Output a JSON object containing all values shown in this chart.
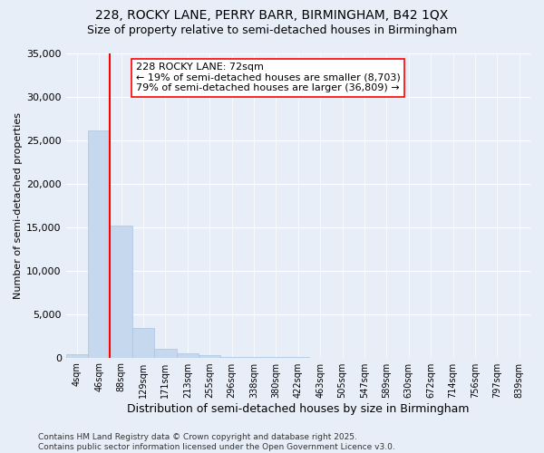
{
  "title_line1": "228, ROCKY LANE, PERRY BARR, BIRMINGHAM, B42 1QX",
  "title_line2": "Size of property relative to semi-detached houses in Birmingham",
  "xlabel": "Distribution of semi-detached houses by size in Birmingham",
  "ylabel": "Number of semi-detached properties",
  "bar_labels": [
    "4sqm",
    "46sqm",
    "88sqm",
    "129sqm",
    "171sqm",
    "213sqm",
    "255sqm",
    "296sqm",
    "338sqm",
    "380sqm",
    "422sqm",
    "463sqm",
    "505sqm",
    "547sqm",
    "589sqm",
    "630sqm",
    "672sqm",
    "714sqm",
    "756sqm",
    "797sqm",
    "839sqm"
  ],
  "bar_values": [
    350,
    26100,
    15200,
    3350,
    1050,
    500,
    300,
    100,
    50,
    20,
    10,
    5,
    0,
    0,
    0,
    0,
    0,
    0,
    0,
    0,
    0
  ],
  "bar_color": "#c5d8ee",
  "bar_edge_color": "#aac4e0",
  "vline_color": "red",
  "vline_x_index": 1.5,
  "annotation_text": "228 ROCKY LANE: 72sqm\n← 19% of semi-detached houses are smaller (8,703)\n79% of semi-detached houses are larger (36,809) →",
  "annotation_box_color": "white",
  "annotation_box_edge": "red",
  "ylim": [
    0,
    35000
  ],
  "yticks": [
    0,
    5000,
    10000,
    15000,
    20000,
    25000,
    30000,
    35000
  ],
  "bg_color": "#e8eef8",
  "grid_color": "#ffffff",
  "footer_text": "Contains HM Land Registry data © Crown copyright and database right 2025.\nContains public sector information licensed under the Open Government Licence v3.0.",
  "title_fontsize": 10,
  "subtitle_fontsize": 9,
  "annotation_fontsize": 8,
  "footer_fontsize": 6.5,
  "ylabel_fontsize": 8,
  "xlabel_fontsize": 9,
  "ytick_fontsize": 8,
  "xtick_fontsize": 7
}
